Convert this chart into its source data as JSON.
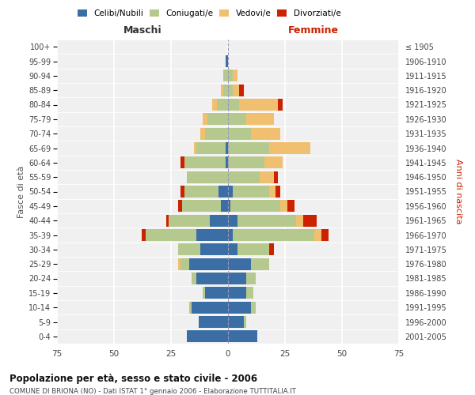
{
  "age_groups": [
    "0-4",
    "5-9",
    "10-14",
    "15-19",
    "20-24",
    "25-29",
    "30-34",
    "35-39",
    "40-44",
    "45-49",
    "50-54",
    "55-59",
    "60-64",
    "65-69",
    "70-74",
    "75-79",
    "80-84",
    "85-89",
    "90-94",
    "95-99",
    "100+"
  ],
  "birth_years": [
    "2001-2005",
    "1996-2000",
    "1991-1995",
    "1986-1990",
    "1981-1985",
    "1976-1980",
    "1971-1975",
    "1966-1970",
    "1961-1965",
    "1956-1960",
    "1951-1955",
    "1946-1950",
    "1941-1945",
    "1936-1940",
    "1931-1935",
    "1926-1930",
    "1921-1925",
    "1916-1920",
    "1911-1915",
    "1906-1910",
    "≤ 1905"
  ],
  "male": {
    "celibi": [
      18,
      13,
      16,
      10,
      14,
      17,
      12,
      14,
      8,
      3,
      4,
      0,
      1,
      1,
      0,
      0,
      0,
      0,
      0,
      1,
      0
    ],
    "coniugati": [
      0,
      0,
      1,
      1,
      2,
      4,
      10,
      22,
      18,
      17,
      15,
      18,
      18,
      13,
      10,
      9,
      5,
      2,
      2,
      0,
      0
    ],
    "vedovi": [
      0,
      0,
      0,
      0,
      0,
      1,
      0,
      0,
      0,
      0,
      0,
      0,
      0,
      1,
      2,
      2,
      2,
      1,
      0,
      0,
      0
    ],
    "divorziati": [
      0,
      0,
      0,
      0,
      0,
      0,
      0,
      2,
      1,
      2,
      2,
      0,
      2,
      0,
      0,
      0,
      0,
      0,
      0,
      0,
      0
    ]
  },
  "female": {
    "nubili": [
      13,
      7,
      10,
      8,
      8,
      10,
      4,
      2,
      4,
      1,
      2,
      0,
      0,
      0,
      0,
      0,
      0,
      0,
      0,
      0,
      0
    ],
    "coniugate": [
      0,
      1,
      2,
      3,
      4,
      8,
      14,
      36,
      26,
      22,
      16,
      14,
      16,
      18,
      10,
      8,
      5,
      2,
      2,
      0,
      0
    ],
    "vedove": [
      0,
      0,
      0,
      0,
      0,
      0,
      0,
      3,
      3,
      3,
      3,
      6,
      8,
      18,
      13,
      12,
      17,
      3,
      2,
      0,
      0
    ],
    "divorziate": [
      0,
      0,
      0,
      0,
      0,
      0,
      2,
      3,
      6,
      3,
      2,
      2,
      0,
      0,
      0,
      0,
      2,
      2,
      0,
      0,
      0
    ]
  },
  "colors": {
    "celibi": "#3a6ea5",
    "coniugati": "#b5c98e",
    "vedovi": "#f0c070",
    "divorziati": "#cc2200"
  },
  "xlim": 75,
  "title": "Popolazione per età, sesso e stato civile - 2006",
  "subtitle": "COMUNE DI BRIONA (NO) - Dati ISTAT 1° gennaio 2006 - Elaborazione TUTTITALIA.IT",
  "xlabel_left": "Maschi",
  "xlabel_right": "Femmine",
  "ylabel_left": "Fasce di età",
  "ylabel_right": "Anni di nascita",
  "legend_labels": [
    "Celibi/Nubili",
    "Coniugati/e",
    "Vedovi/e",
    "Divorziati/e"
  ],
  "bg_color": "#ffffff",
  "plot_bg_color": "#f0f0f0"
}
